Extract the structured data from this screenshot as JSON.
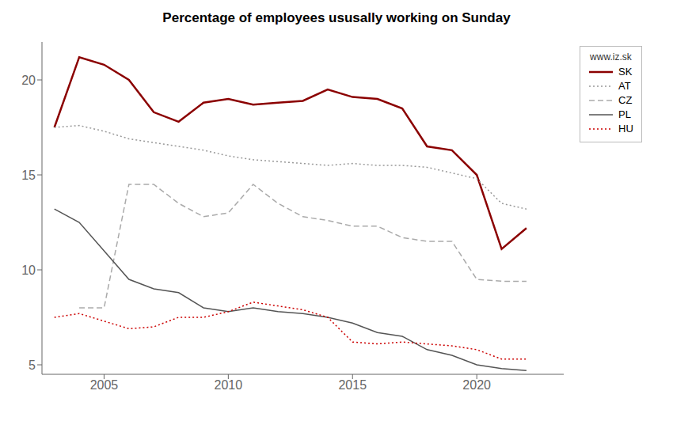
{
  "chart_data": {
    "type": "line",
    "title": "Percentage of employees ususally working on Sunday",
    "x": [
      2003,
      2004,
      2005,
      2006,
      2007,
      2008,
      2009,
      2010,
      2011,
      2012,
      2013,
      2014,
      2015,
      2016,
      2017,
      2018,
      2019,
      2020,
      2021,
      2022
    ],
    "series": [
      {
        "name": "SK",
        "color": "#8B0000",
        "line_style": "solid",
        "values": [
          17.5,
          21.2,
          20.8,
          20.0,
          18.3,
          17.8,
          18.8,
          19.0,
          18.7,
          18.8,
          18.9,
          19.5,
          19.1,
          19.0,
          18.5,
          16.5,
          16.3,
          15.0,
          11.1,
          12.2
        ]
      },
      {
        "name": "AT",
        "color": "#999999",
        "line_style": "dotted",
        "values": [
          17.5,
          17.6,
          17.3,
          16.9,
          16.7,
          16.5,
          16.3,
          16.0,
          15.8,
          15.7,
          15.6,
          15.5,
          15.6,
          15.5,
          15.5,
          15.4,
          15.1,
          14.8,
          13.5,
          13.2
        ]
      },
      {
        "name": "CZ",
        "color": "#AAAAAA",
        "line_style": "dashed",
        "values": [
          null,
          8.0,
          8.0,
          14.5,
          14.5,
          13.5,
          12.8,
          13.0,
          14.5,
          13.5,
          12.8,
          12.6,
          12.3,
          12.3,
          11.7,
          11.5,
          11.5,
          9.5,
          9.4,
          9.4
        ]
      },
      {
        "name": "PL",
        "color": "#555555",
        "line_style": "solid",
        "values": [
          13.2,
          12.5,
          11.0,
          9.5,
          9.0,
          8.8,
          8.0,
          7.8,
          8.0,
          7.8,
          7.7,
          7.5,
          7.2,
          6.7,
          6.5,
          5.8,
          5.5,
          5.0,
          4.8,
          4.7
        ]
      },
      {
        "name": "HU",
        "color": "#CC0000",
        "line_style": "dotted",
        "values": [
          7.5,
          7.7,
          7.3,
          6.9,
          7.0,
          7.5,
          7.5,
          7.8,
          8.3,
          8.1,
          7.9,
          7.5,
          6.2,
          6.1,
          6.2,
          6.1,
          6.0,
          5.8,
          5.3,
          5.3
        ]
      }
    ],
    "xlim": [
      2002.5,
      2023.5
    ],
    "xticks": [
      2005,
      2010,
      2015,
      2020
    ],
    "ylim": [
      4.5,
      22
    ],
    "yticks": [
      5,
      10,
      15,
      20
    ],
    "grid": false,
    "legend": "right",
    "annotations": [
      "www.iz.sk"
    ]
  }
}
